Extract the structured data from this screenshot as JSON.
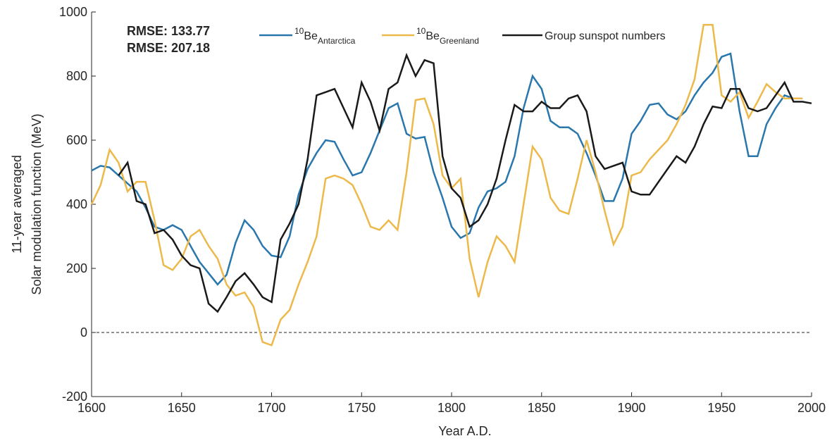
{
  "chart_data": {
    "type": "line",
    "x_label": "Year A.D.",
    "y_label": [
      "11-year averaged",
      "Solar modulation function (MeV)"
    ],
    "xlim": [
      1600,
      2000
    ],
    "xticks": [
      1600,
      1650,
      1700,
      1750,
      1800,
      1850,
      1900,
      1950,
      2000
    ],
    "ylim": [
      -200,
      1000
    ],
    "yticks": [
      -200,
      0,
      200,
      400,
      600,
      800,
      1000
    ],
    "reference_line": 0,
    "annotations": [
      {
        "text": "RMSE: 133.77",
        "color": "#2a77ad"
      },
      {
        "text": "RMSE: 207.18",
        "color": "#ecb94a"
      }
    ],
    "x": [
      1600,
      1605,
      1610,
      1615,
      1620,
      1625,
      1630,
      1635,
      1640,
      1645,
      1650,
      1655,
      1660,
      1665,
      1670,
      1675,
      1680,
      1685,
      1690,
      1695,
      1700,
      1705,
      1710,
      1715,
      1720,
      1725,
      1730,
      1735,
      1740,
      1745,
      1750,
      1755,
      1760,
      1765,
      1770,
      1775,
      1780,
      1785,
      1790,
      1795,
      1800,
      1805,
      1810,
      1815,
      1820,
      1825,
      1830,
      1835,
      1840,
      1845,
      1850,
      1855,
      1860,
      1865,
      1870,
      1875,
      1880,
      1885,
      1890,
      1895,
      1900,
      1905,
      1910,
      1915,
      1920,
      1925,
      1930,
      1935,
      1940,
      1945,
      1950,
      1955,
      1960,
      1965,
      1970,
      1975,
      1980,
      1985,
      1990,
      1995,
      2000
    ],
    "series": [
      {
        "name": [
          "10",
          "Be",
          "Antarctica"
        ],
        "color": "#2a77ad",
        "values": [
          505,
          520,
          515,
          490,
          465,
          440,
          390,
          330,
          320,
          335,
          320,
          270,
          220,
          185,
          150,
          180,
          280,
          350,
          320,
          270,
          240,
          235,
          300,
          430,
          510,
          560,
          600,
          595,
          540,
          490,
          500,
          560,
          630,
          700,
          715,
          620,
          605,
          610,
          500,
          420,
          330,
          295,
          310,
          390,
          440,
          450,
          470,
          550,
          700,
          800,
          760,
          660,
          640,
          640,
          620,
          560,
          490,
          410,
          410,
          480,
          620,
          660,
          710,
          715,
          680,
          665,
          690,
          740,
          780,
          810,
          860,
          870,
          690,
          550,
          550,
          650,
          700,
          740,
          730,
          730,
          null
        ]
      },
      {
        "name": [
          "10",
          "Be",
          "Greenland"
        ],
        "color": "#ecb94a",
        "values": [
          400,
          460,
          570,
          530,
          440,
          470,
          470,
          350,
          210,
          195,
          230,
          300,
          320,
          270,
          230,
          150,
          115,
          125,
          80,
          -30,
          -40,
          40,
          70,
          150,
          220,
          300,
          480,
          490,
          480,
          460,
          400,
          330,
          320,
          350,
          320,
          500,
          725,
          730,
          650,
          490,
          450,
          480,
          230,
          110,
          220,
          300,
          270,
          220,
          400,
          580,
          540,
          420,
          380,
          370,
          480,
          600,
          500,
          380,
          275,
          330,
          490,
          500,
          540,
          570,
          600,
          650,
          710,
          790,
          960,
          960,
          740,
          720,
          750,
          670,
          720,
          775,
          750,
          730,
          730,
          730,
          null
        ]
      },
      {
        "name": [
          "Group sunspot numbers"
        ],
        "color": "#1a1a1a",
        "values": [
          null,
          null,
          null,
          490,
          530,
          410,
          400,
          310,
          320,
          290,
          240,
          210,
          200,
          90,
          65,
          110,
          160,
          185,
          150,
          110,
          95,
          290,
          340,
          400,
          540,
          740,
          750,
          760,
          700,
          640,
          780,
          720,
          630,
          760,
          780,
          865,
          800,
          850,
          840,
          550,
          450,
          420,
          330,
          350,
          400,
          480,
          600,
          710,
          690,
          690,
          720,
          700,
          700,
          730,
          740,
          690,
          550,
          510,
          520,
          530,
          440,
          430,
          430,
          470,
          510,
          550,
          530,
          580,
          650,
          705,
          700,
          760,
          760,
          700,
          690,
          700,
          740,
          780,
          720,
          720,
          715
        ]
      }
    ]
  }
}
